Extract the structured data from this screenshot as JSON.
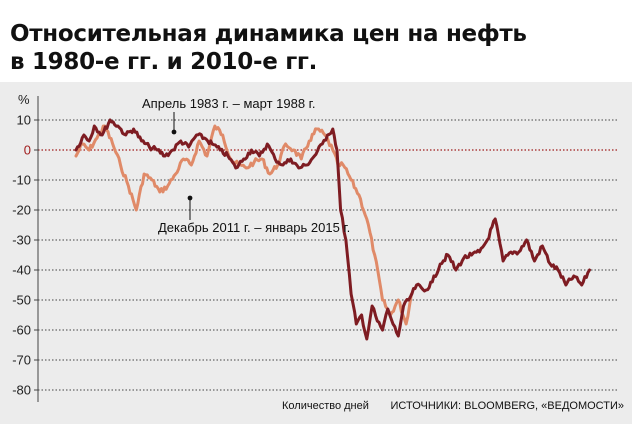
{
  "title_line1": "Относительная динамика цен на нефть",
  "title_line2": "в 1980-е гг. и 2010-е гг.",
  "colors": {
    "series_1980s": "#7e1c22",
    "series_2010s": "#e08a68",
    "zero_line": "#a01c1c",
    "grid": "#444444",
    "background": "#ececec"
  },
  "chart_data": {
    "type": "line",
    "title": "Относительная динамика цен на нефть в 1980-е гг. и 2010-е гг.",
    "ylabel": "%",
    "xlabel": "Количество дней",
    "ylim": [
      -85,
      15
    ],
    "yticks": [
      10,
      0,
      -10,
      -20,
      -30,
      -40,
      -50,
      -60,
      -70,
      -80
    ],
    "ytick_labels": [
      "10",
      "0",
      "-10",
      "-20",
      "-30",
      "-40",
      "-50",
      "-60",
      "-70",
      "-80"
    ],
    "xlim": [
      0,
      1000
    ],
    "grid": true,
    "annotations": [
      {
        "text": "Апрель 1983 г. – март 1988 г.",
        "series": 0
      },
      {
        "text": "Декабрь 2011 г. – январь 2015 г.",
        "series": 1
      }
    ],
    "series": [
      {
        "name": "Апрель 1983 г. – март 1988 г.",
        "x": [
          0,
          15,
          25,
          35,
          50,
          65,
          80,
          95,
          110,
          125,
          140,
          155,
          170,
          185,
          200,
          215,
          230,
          245,
          260,
          275,
          290,
          305,
          320,
          335,
          350,
          365,
          380,
          395,
          410,
          425,
          440,
          455,
          470,
          480,
          490,
          498,
          505,
          515,
          525,
          535,
          545,
          555,
          565,
          575,
          585,
          595,
          605,
          615,
          625,
          635,
          650,
          665,
          680,
          695,
          710,
          725,
          740,
          755,
          770,
          785,
          800,
          815,
          830,
          845,
          860,
          875,
          890,
          905,
          920,
          935,
          950,
          965,
          980
        ],
        "values": [
          0,
          5,
          3,
          8,
          5,
          10,
          8,
          5,
          7,
          3,
          1,
          0,
          -2,
          0,
          3,
          1,
          5,
          4,
          2,
          0,
          -2,
          -6,
          -3,
          0,
          -2,
          2,
          -3,
          -5,
          -3,
          -6,
          -5,
          -2,
          2,
          5,
          7,
          0,
          -20,
          -30,
          -48,
          -58,
          -55,
          -63,
          -52,
          -57,
          -60,
          -53,
          -58,
          -62,
          -52,
          -50,
          -45,
          -47,
          -44,
          -38,
          -35,
          -40,
          -36,
          -35,
          -34,
          -30,
          -23,
          -37,
          -34,
          -34,
          -30,
          -37,
          -32,
          -38,
          -40,
          -45,
          -42,
          -45,
          -40
        ]
      },
      {
        "name": "Декабрь 2011 г. – январь 2015 г.",
        "x": [
          0,
          12,
          25,
          40,
          55,
          70,
          85,
          100,
          115,
          130,
          145,
          160,
          175,
          190,
          205,
          220,
          235,
          250,
          265,
          280,
          295,
          310,
          325,
          340,
          355,
          370,
          385,
          400,
          415,
          430,
          445,
          460,
          475,
          490,
          500,
          510,
          525,
          540,
          555,
          570,
          585,
          600,
          615,
          630,
          640
        ],
        "values": [
          -2,
          2,
          0,
          4,
          8,
          2,
          -5,
          -12,
          -20,
          -8,
          -10,
          -14,
          -12,
          -8,
          -3,
          -5,
          3,
          -2,
          8,
          5,
          -3,
          -5,
          -6,
          -4,
          -3,
          -8,
          -5,
          2,
          0,
          -3,
          3,
          7,
          5,
          0,
          -5,
          -5,
          -10,
          -15,
          -23,
          -35,
          -50,
          -55,
          -50,
          -58,
          -48
        ]
      }
    ],
    "source": "ИСТОЧНИКИ: BLOOMBERG, «ВЕДОМОСТИ»"
  }
}
